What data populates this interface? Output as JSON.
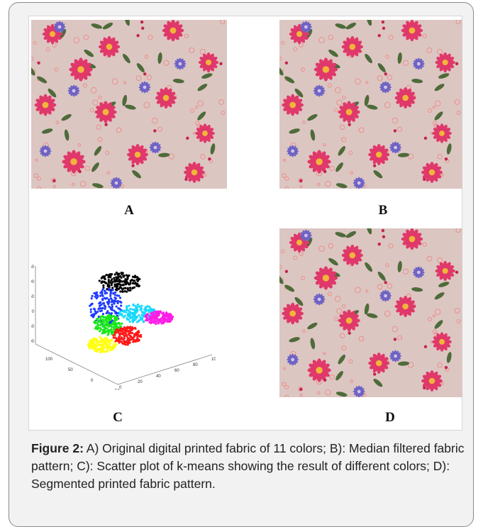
{
  "figure": {
    "panels": [
      {
        "id": "A",
        "label": "A"
      },
      {
        "id": "B",
        "label": "B"
      },
      {
        "id": "C",
        "label": "C"
      },
      {
        "id": "D",
        "label": "D"
      }
    ],
    "caption_bold": "Figure 2:",
    "caption_text": " A) Original digital printed fabric of 11 colors; B): Median filtered fabric pattern; C): Scatter plot of k-means showing the result of different colors; D): Segmented printed fabric pattern."
  },
  "colors": {
    "fabric_bg": "#dcc6c2",
    "pink_flower": "#e0386a",
    "blue_flower": "#6d63c4",
    "leaf": "#4e6b3a",
    "cluster_black": "#000000",
    "cluster_blue": "#1f3bff",
    "cluster_cyan": "#18d8ff",
    "cluster_green": "#18e818",
    "cluster_magenta": "#ff1ee8",
    "cluster_yellow": "#ffff10",
    "cluster_red": "#ff1818"
  },
  "chart_data": {
    "type": "scatter",
    "title": "",
    "xlabel": "",
    "ylabel": "",
    "z_ticks": [
      "150",
      "100",
      "50",
      "0",
      "-50",
      "-100"
    ],
    "x_ticks": [
      "0",
      "20",
      "40",
      "60",
      "80",
      "100"
    ],
    "y_ticks": [
      "100",
      "50",
      "0",
      "-50"
    ],
    "series": [
      {
        "color": "#000000"
      },
      {
        "color": "#1f3bff"
      },
      {
        "color": "#18d8ff"
      },
      {
        "color": "#18e818"
      },
      {
        "color": "#ff1ee8"
      },
      {
        "color": "#ffff10"
      },
      {
        "color": "#ff1818"
      }
    ]
  }
}
